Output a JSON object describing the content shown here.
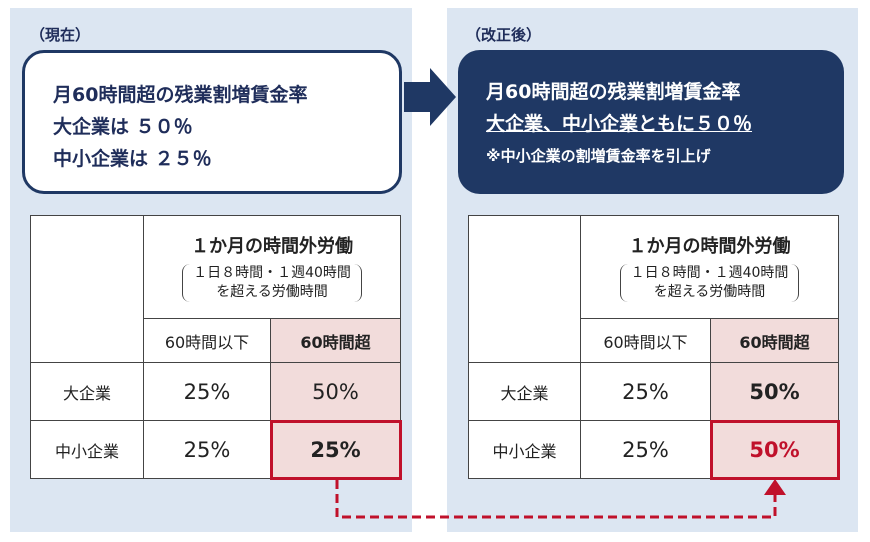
{
  "panels": [
    {
      "label": "（現在）",
      "callout": [
        "月60時間超の残業割増賃金率",
        "大企業は ５０％",
        "中小企業は ２５％"
      ],
      "table": {
        "title": "１か月の時間外労働",
        "note": [
          "１日８時間・１週40時間",
          "を超える労働時間"
        ],
        "columns": [
          "60時間以下",
          "60時間超"
        ],
        "rows": [
          [
            "大企業",
            "25%",
            "50%"
          ],
          [
            "中小企業",
            "25%",
            "25%"
          ]
        ]
      }
    },
    {
      "label": "（改正後）",
      "callout": [
        "月60時間超の残業割増賃金率",
        "大企業、中小企業ともに５０％",
        "※中小企業の割増賃金率を引上げ"
      ],
      "table": {
        "title": "１か月の時間外労働",
        "note": [
          "１日８時間・１週40時間",
          "を超える労働時間"
        ],
        "columns": [
          "60時間以下",
          "60時間超"
        ],
        "rows": [
          [
            "大企業",
            "25%",
            "50%"
          ],
          [
            "中小企業",
            "25%",
            "50%"
          ]
        ]
      }
    }
  ]
}
